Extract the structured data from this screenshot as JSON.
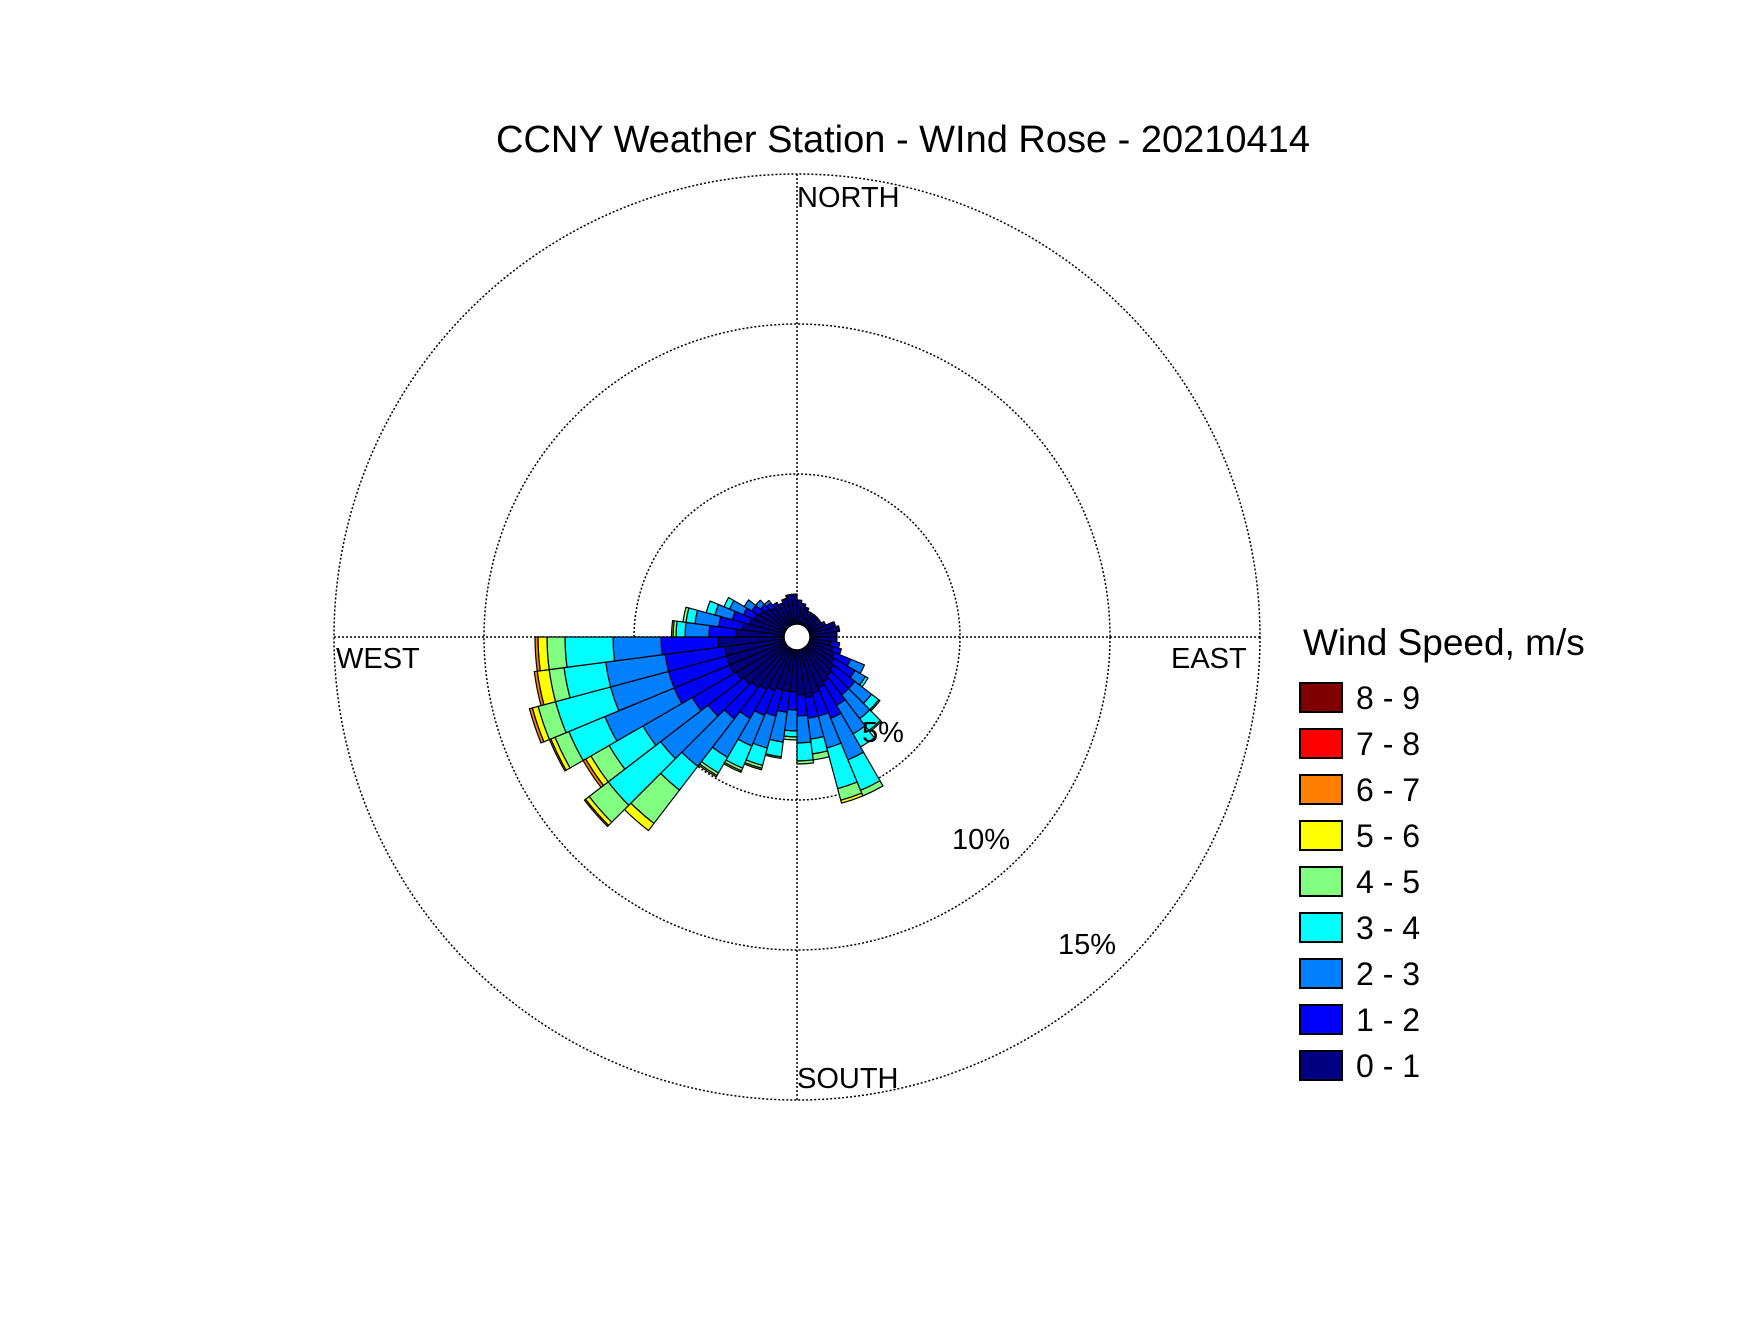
{
  "chart_data": {
    "type": "windrose",
    "title": "CCNY Weather Station - WInd Rose - 20210414",
    "directions": {
      "north": "NORTH",
      "east": "EAST",
      "south": "SOUTH",
      "west": "WEST"
    },
    "rings": [
      {
        "value": 5,
        "label": "5%"
      },
      {
        "value": 10,
        "label": "10%"
      },
      {
        "value": 15,
        "label": "15%"
      }
    ],
    "rmax": 15,
    "legend": {
      "title": "Wind Speed, m/s",
      "bins": [
        {
          "label": "8 - 9",
          "color": "#800000"
        },
        {
          "label": "7 - 8",
          "color": "#ff0000"
        },
        {
          "label": "6 - 7",
          "color": "#ff8000"
        },
        {
          "label": "5 - 6",
          "color": "#ffff00"
        },
        {
          "label": "4 - 5",
          "color": "#80ff80"
        },
        {
          "label": "3 - 4",
          "color": "#00ffff"
        },
        {
          "label": "2 - 3",
          "color": "#0080ff"
        },
        {
          "label": "1 - 2",
          "color": "#0000ff"
        },
        {
          "label": "0 - 1",
          "color": "#000080"
        }
      ]
    },
    "bin_colors": [
      "#000080",
      "#0000ff",
      "#0080ff",
      "#00ffff",
      "#80ff80",
      "#ffff00",
      "#ff8000",
      "#ff0000",
      "#800000"
    ],
    "sector_width_deg": 7.5,
    "sectors": [
      {
        "dir": 3.75,
        "cum": [
          0.8
        ]
      },
      {
        "dir": 11.25,
        "cum": [
          0.7
        ]
      },
      {
        "dir": 18.75,
        "cum": [
          0.6
        ]
      },
      {
        "dir": 26.25,
        "cum": [
          0.5
        ]
      },
      {
        "dir": 33.75,
        "cum": [
          0.5
        ]
      },
      {
        "dir": 41.25,
        "cum": [
          0.5
        ]
      },
      {
        "dir": 48.75,
        "cum": [
          0.5
        ]
      },
      {
        "dir": 56.25,
        "cum": [
          0.5
        ]
      },
      {
        "dir": 63.75,
        "cum": [
          0.6
        ]
      },
      {
        "dir": 71.25,
        "cum": [
          0.9
        ]
      },
      {
        "dir": 78.75,
        "cum": [
          1.0
        ]
      },
      {
        "dir": 86.25,
        "cum": [
          0.9
        ]
      },
      {
        "dir": 93.75,
        "cum": [
          0.9
        ]
      },
      {
        "dir": 101.25,
        "cum": [
          0.7,
          1.0
        ]
      },
      {
        "dir": 108.75,
        "cum": [
          0.8,
          1.1
        ]
      },
      {
        "dir": 116.25,
        "cum": [
          0.9,
          1.5,
          2.0
        ]
      },
      {
        "dir": 123.75,
        "cum": [
          1.0,
          1.8,
          2.2,
          2.3
        ]
      },
      {
        "dir": 131.25,
        "cum": [
          1.1,
          2.0,
          2.7,
          3.0,
          3.05
        ]
      },
      {
        "dir": 138.75,
        "cum": [
          1.2,
          2.0,
          3.0,
          3.5,
          3.55
        ]
      },
      {
        "dir": 146.25,
        "cum": [
          1.3,
          2.2,
          3.3,
          3.8
        ]
      },
      {
        "dir": 153.75,
        "cum": [
          1.4,
          2.5,
          4.0,
          5.1,
          5.3
        ]
      },
      {
        "dir": 161.25,
        "cum": [
          1.5,
          2.3,
          3.4,
          4.8,
          5.2,
          5.3
        ]
      },
      {
        "dir": 168.75,
        "cum": [
          1.6,
          2.3,
          3.0,
          3.5,
          3.7
        ]
      },
      {
        "dir": 176.25,
        "cum": [
          1.5,
          2.2,
          3.1,
          3.7,
          3.8
        ]
      },
      {
        "dir": 183.75,
        "cum": [
          1.4,
          2.0,
          2.7,
          2.9,
          3.0
        ]
      },
      {
        "dir": 191.25,
        "cum": [
          1.4,
          2.1,
          3.1,
          3.6,
          3.65
        ]
      },
      {
        "dir": 198.75,
        "cum": [
          1.4,
          2.3,
          3.4,
          4.0,
          4.1,
          4.15
        ]
      },
      {
        "dir": 206.25,
        "cum": [
          1.5,
          2.4,
          3.5,
          4.3,
          4.4,
          4.45
        ]
      },
      {
        "dir": 213.75,
        "cum": [
          1.6,
          2.7,
          4.2,
          4.8,
          4.9,
          4.95
        ]
      },
      {
        "dir": 221.25,
        "cum": [
          1.7,
          3.0,
          5.0,
          6.0,
          7.4,
          7.7
        ]
      },
      {
        "dir": 228.75,
        "cum": [
          1.8,
          3.3,
          5.3,
          7.5,
          8.3,
          8.45,
          8.5
        ]
      },
      {
        "dir": 236.25,
        "cum": [
          1.9,
          3.6,
          5.5,
          6.8,
          7.5,
          7.7,
          7.8
        ]
      },
      {
        "dir": 243.75,
        "cum": [
          2.0,
          4.0,
          6.5,
          7.8,
          8.3,
          8.45,
          8.5
        ]
      },
      {
        "dir": 251.25,
        "cum": [
          2.0,
          4.0,
          6.0,
          7.9,
          8.5,
          8.7,
          8.8
        ]
      },
      {
        "dir": 258.75,
        "cum": [
          2.0,
          4.0,
          6.0,
          7.4,
          7.9,
          8.3,
          8.4
        ]
      },
      {
        "dir": 266.25,
        "cum": [
          2.2,
          4.1,
          5.7,
          7.3,
          7.9,
          8.2,
          8.3
        ]
      },
      {
        "dir": 273.75,
        "cum": [
          1.6,
          2.5,
          3.3,
          3.6,
          3.7,
          3.75
        ]
      },
      {
        "dir": 281.25,
        "cum": [
          1.4,
          2.2,
          3.0,
          3.3,
          3.4
        ]
      },
      {
        "dir": 288.75,
        "cum": [
          1.2,
          1.8,
          2.4,
          2.7
        ]
      },
      {
        "dir": 296.25,
        "cum": [
          1.1,
          1.5,
          2.0,
          2.2
        ]
      },
      {
        "dir": 303.75,
        "cum": [
          1.0,
          1.3,
          1.6
        ]
      },
      {
        "dir": 311.25,
        "cum": [
          0.9,
          1.1,
          1.3
        ]
      },
      {
        "dir": 318.75,
        "cum": [
          0.8,
          1.0,
          1.1
        ]
      },
      {
        "dir": 326.25,
        "cum": [
          0.8,
          0.9
        ]
      },
      {
        "dir": 333.75,
        "cum": [
          0.8
        ]
      },
      {
        "dir": 341.25,
        "cum": [
          0.9
        ]
      },
      {
        "dir": 348.75,
        "cum": [
          1.0
        ]
      },
      {
        "dir": 356.25,
        "cum": [
          1.0
        ]
      }
    ]
  }
}
